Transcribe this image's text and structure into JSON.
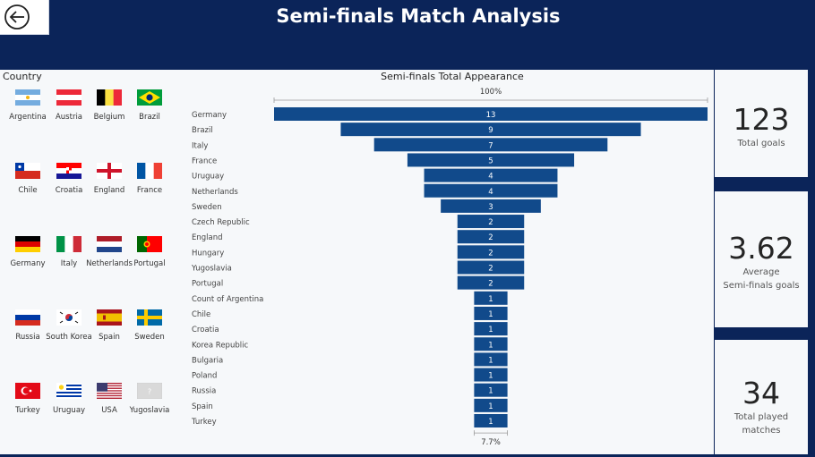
{
  "header": {
    "title": "Semi-finals Match Analysis"
  },
  "slicer": {
    "title": "Country",
    "countries": [
      {
        "name": "Argentina",
        "flag": "argentina"
      },
      {
        "name": "Austria",
        "flag": "austria"
      },
      {
        "name": "Belgium",
        "flag": "belgium"
      },
      {
        "name": "Brazil",
        "flag": "brazil"
      },
      {
        "name": "Chile",
        "flag": "chile"
      },
      {
        "name": "Croatia",
        "flag": "croatia"
      },
      {
        "name": "England",
        "flag": "england"
      },
      {
        "name": "France",
        "flag": "france"
      },
      {
        "name": "Germany",
        "flag": "germany"
      },
      {
        "name": "Italy",
        "flag": "italy"
      },
      {
        "name": "Netherlands",
        "flag": "netherlands"
      },
      {
        "name": "Portugal",
        "flag": "portugal"
      },
      {
        "name": "Russia",
        "flag": "russia"
      },
      {
        "name": "South Korea",
        "flag": "south-korea"
      },
      {
        "name": "Spain",
        "flag": "spain"
      },
      {
        "name": "Sweden",
        "flag": "sweden"
      },
      {
        "name": "Turkey",
        "flag": "turkey"
      },
      {
        "name": "Uruguay",
        "flag": "uruguay"
      },
      {
        "name": "USA",
        "flag": "usa"
      },
      {
        "name": "Yugoslavia",
        "flag": "unknown",
        "flag_text": "?"
      }
    ]
  },
  "kpis": {
    "total_goals": {
      "value": "123",
      "label": "Total goals"
    },
    "avg_goals": {
      "value": "3.62",
      "label_line1": "Average",
      "label_line2": "Semi-finals goals"
    },
    "matches": {
      "value": "34",
      "label_line1": "Total played",
      "label_line2": "matches"
    }
  },
  "colors": {
    "navy": "#0b2459",
    "bar": "#114a8b"
  },
  "chart_data": {
    "type": "funnel",
    "title": "Semi-finals Total Appearance",
    "top_percent_label": "100%",
    "bottom_percent_label": "7.7%",
    "categories": [
      "Germany",
      "Brazil",
      "Italy",
      "France",
      "Uruguay",
      "Netherlands",
      "Sweden",
      "Czech Republic",
      "England",
      "Hungary",
      "Yugoslavia",
      "Portugal",
      "Count of Argentina",
      "Chile",
      "Croatia",
      "Korea Republic",
      "Bulgaria",
      "Poland",
      "Russia",
      "Spain",
      "Turkey"
    ],
    "values": [
      13,
      9,
      7,
      5,
      4,
      4,
      3,
      2,
      2,
      2,
      2,
      2,
      1,
      1,
      1,
      1,
      1,
      1,
      1,
      1,
      1
    ]
  }
}
